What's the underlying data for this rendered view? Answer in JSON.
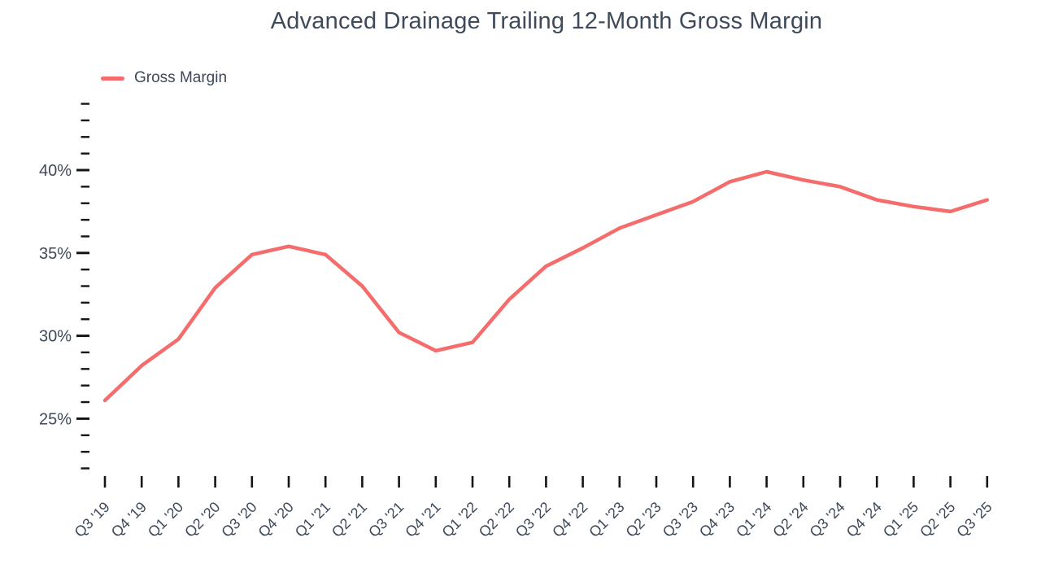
{
  "page": {
    "title": "Advanced Drainage Trailing 12-Month Gross Margin"
  },
  "legend": {
    "items": [
      {
        "label": "Gross Margin",
        "color": "#f56c6c"
      }
    ]
  },
  "colors": {
    "series": "#f56c6c",
    "text": "#3e4a59",
    "tick": "#141414",
    "background": "#ffffff"
  },
  "chart_data": {
    "type": "line",
    "title": "Advanced Drainage Trailing 12-Month Gross Margin",
    "xlabel": "",
    "ylabel": "",
    "categories": [
      "Q3 '19",
      "Q4 '19",
      "Q1 '20",
      "Q2 '20",
      "Q3 '20",
      "Q4 '20",
      "Q1 '21",
      "Q2 '21",
      "Q3 '21",
      "Q4 '21",
      "Q1 '22",
      "Q2 '22",
      "Q3 '22",
      "Q4 '22",
      "Q1 '23",
      "Q2 '23",
      "Q3 '23",
      "Q4 '23",
      "Q1 '24",
      "Q2 '24",
      "Q3 '24",
      "Q4 '24",
      "Q1 '25",
      "Q2 '25",
      "Q3 '25"
    ],
    "series": [
      {
        "name": "Gross Margin",
        "color": "#f56c6c",
        "values": [
          26.1,
          28.2,
          29.8,
          32.9,
          34.9,
          35.4,
          34.9,
          33.0,
          30.2,
          29.1,
          29.6,
          32.2,
          34.2,
          35.3,
          36.5,
          37.3,
          38.1,
          39.3,
          39.9,
          39.4,
          39.0,
          38.2,
          37.8,
          37.5,
          38.2
        ]
      }
    ],
    "y_axis": {
      "unit": "%",
      "tick_min": 22,
      "tick_max": 44,
      "tick_step": 1,
      "labeled_ticks": [
        25,
        30,
        35,
        40
      ],
      "ylim": [
        22,
        44
      ]
    },
    "x_axis": {
      "label_rotation": -45
    },
    "legend_position": "top-left",
    "grid": false
  }
}
